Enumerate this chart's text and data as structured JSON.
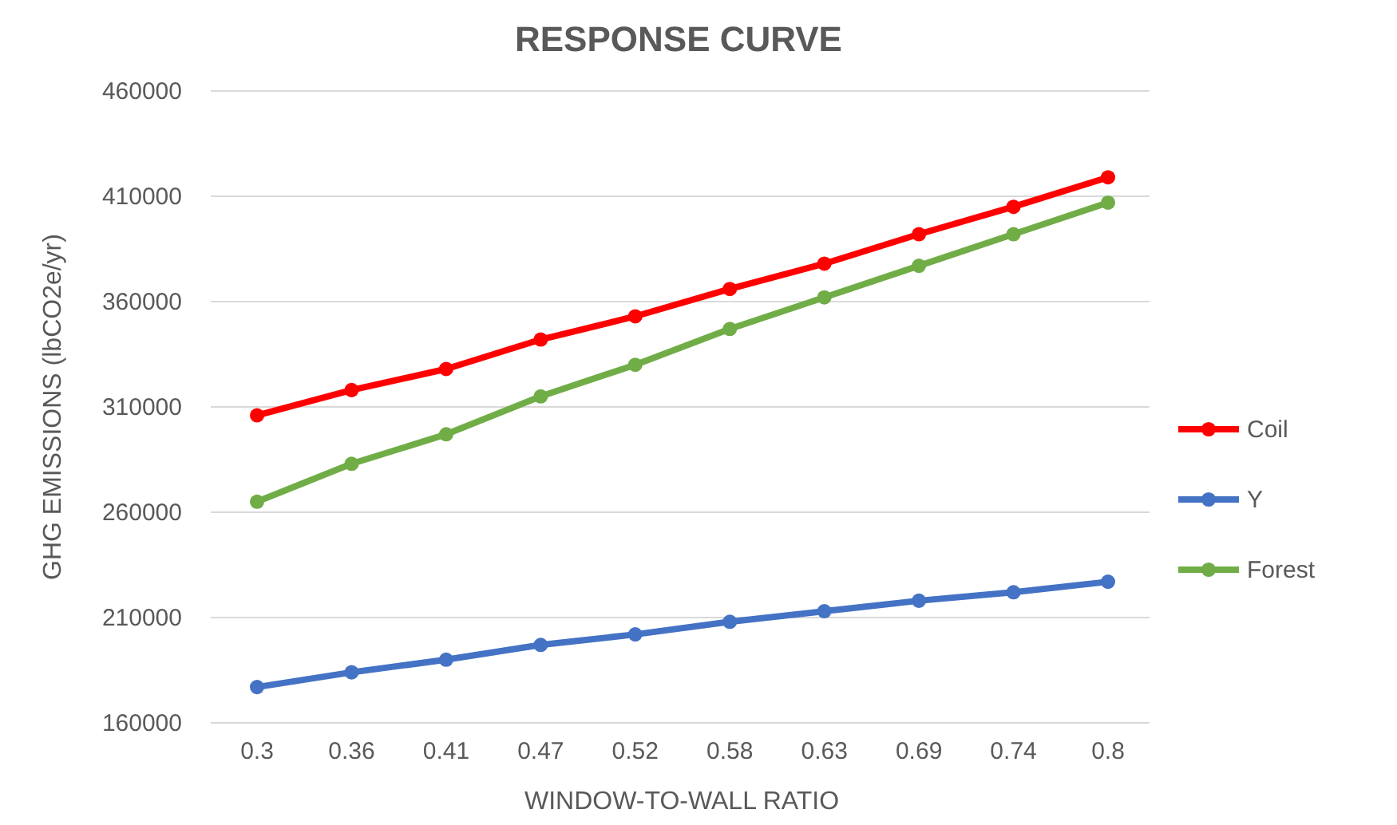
{
  "chart_data": {
    "type": "line",
    "title": "RESPONSE CURVE",
    "xlabel": "WINDOW-TO-WALL RATIO",
    "ylabel": "GHG EMISSIONS (lbCO2e/yr)",
    "categories": [
      "0.3",
      "0.36",
      "0.41",
      "0.47",
      "0.52",
      "0.58",
      "0.63",
      "0.69",
      "0.74",
      "0.8"
    ],
    "series": [
      {
        "name": "Coil",
        "color": "#ff0000",
        "values": [
          306000,
          318000,
          328000,
          342000,
          353000,
          366000,
          378000,
          392000,
          405000,
          419000
        ]
      },
      {
        "name": "Y",
        "color": "#4472c4",
        "values": [
          177000,
          184000,
          190000,
          197000,
          202000,
          208000,
          213000,
          218000,
          222000,
          227000
        ]
      },
      {
        "name": "Forest",
        "color": "#70ad47",
        "values": [
          265000,
          283000,
          297000,
          315000,
          330000,
          347000,
          362000,
          377000,
          392000,
          407000
        ]
      }
    ],
    "ylim": [
      160000,
      460000
    ],
    "yticks": [
      160000,
      210000,
      260000,
      310000,
      360000,
      410000,
      460000
    ],
    "grid": "y",
    "legend": "right",
    "marker": "circle",
    "line_style": "solid"
  }
}
